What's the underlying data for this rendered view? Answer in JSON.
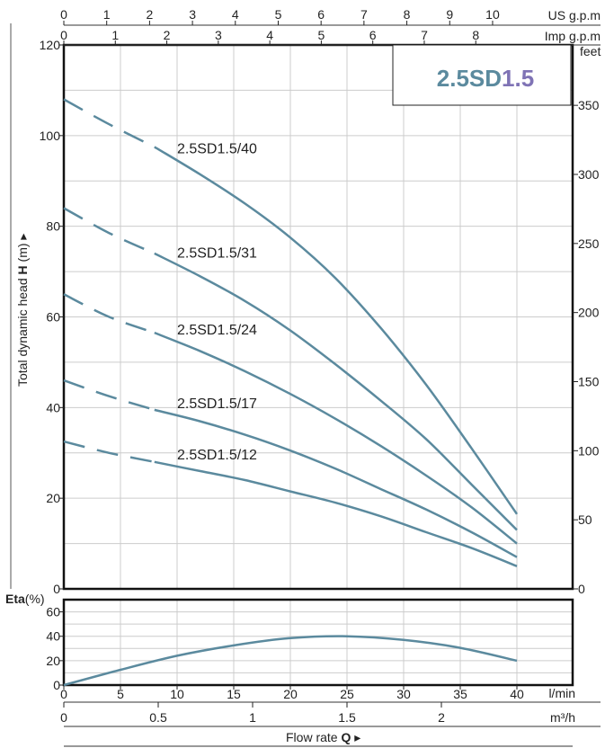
{
  "chart_data": {
    "type": "line",
    "badge": {
      "text_main": "2.5SD",
      "text_accent": "1.5",
      "color_main": "#5B8A9E",
      "color_accent": "#7F73B5"
    },
    "curve_color": "#5B8A9E",
    "head_chart": {
      "y_axis_label": {
        "prefix": "Total dynamic head",
        "symbol": "H",
        "unit": "(m)"
      },
      "ylim": [
        0,
        120
      ],
      "y_ticks": [
        0,
        20,
        40,
        60,
        80,
        100,
        120
      ],
      "right_axis_unit": "feet",
      "right_ticks": [
        0,
        50,
        100,
        150,
        200,
        250,
        300,
        350
      ],
      "series": [
        {
          "name": "2.5SD1.5/40",
          "dashed_until": 8,
          "x": [
            0,
            4,
            8,
            12,
            16,
            20,
            24,
            28,
            32,
            36,
            40
          ],
          "y": [
            108,
            102.5,
            97.5,
            91.5,
            85,
            77.5,
            68.5,
            57.5,
            45,
            31,
            16.5
          ]
        },
        {
          "name": "2.5SD1.5/31",
          "dashed_until": 8,
          "x": [
            0,
            4,
            8,
            12,
            16,
            20,
            24,
            28,
            32,
            36,
            40
          ],
          "y": [
            84,
            78.5,
            74,
            69,
            63.5,
            57,
            49.5,
            41.5,
            33,
            23,
            13
          ]
        },
        {
          "name": "2.5SD1.5/24",
          "dashed_until": 8,
          "x": [
            0,
            4,
            8,
            12,
            16,
            20,
            24,
            28,
            32,
            36,
            40
          ],
          "y": [
            65,
            60,
            56.5,
            52.5,
            48,
            43,
            37.5,
            31.5,
            25,
            18,
            10
          ]
        },
        {
          "name": "2.5SD1.5/17",
          "dashed_until": 8,
          "x": [
            0,
            4,
            8,
            12,
            16,
            20,
            24,
            28,
            32,
            36,
            40
          ],
          "y": [
            46,
            42.5,
            39.5,
            37,
            34,
            30.5,
            26.5,
            22,
            17.5,
            12.5,
            7
          ]
        },
        {
          "name": "2.5SD1.5/12",
          "dashed_until": 8,
          "x": [
            0,
            4,
            8,
            12,
            16,
            20,
            24,
            28,
            32,
            36,
            40
          ],
          "y": [
            32.5,
            30,
            28,
            26,
            24,
            21.5,
            19,
            16,
            12.5,
            9,
            5
          ]
        }
      ]
    },
    "efficiency_chart": {
      "y_axis_label": {
        "symbol": "Eta",
        "unit": "(%)"
      },
      "ylim": [
        0,
        70
      ],
      "y_ticks": [
        0,
        20,
        40,
        60
      ],
      "series": [
        {
          "x": [
            0,
            5,
            10,
            15,
            20,
            25,
            30,
            35,
            40
          ],
          "y": [
            0,
            12.5,
            24,
            32.5,
            38.5,
            40,
            37,
            30.5,
            20
          ]
        }
      ]
    },
    "x_axis": {
      "xlim": [
        0,
        40
      ],
      "lmin_unit": "l/min",
      "lmin_ticks": [
        0,
        5,
        10,
        15,
        20,
        25,
        30,
        35,
        40
      ],
      "m3h_unit": "m³/h",
      "m3h_ticks": [
        "0",
        "0.5",
        "1",
        "1.5",
        "2"
      ],
      "title_text": "Flow rate",
      "title_symbol": "Q",
      "us_gpm_unit": "US g.p.m",
      "us_gpm_ticks": [
        0,
        1,
        2,
        3,
        4,
        5,
        6,
        7,
        8,
        9,
        10
      ],
      "imp_gpm_unit": "Imp g.p.m",
      "imp_gpm_ticks": [
        0,
        1,
        2,
        3,
        4,
        5,
        6,
        7,
        8
      ]
    }
  }
}
